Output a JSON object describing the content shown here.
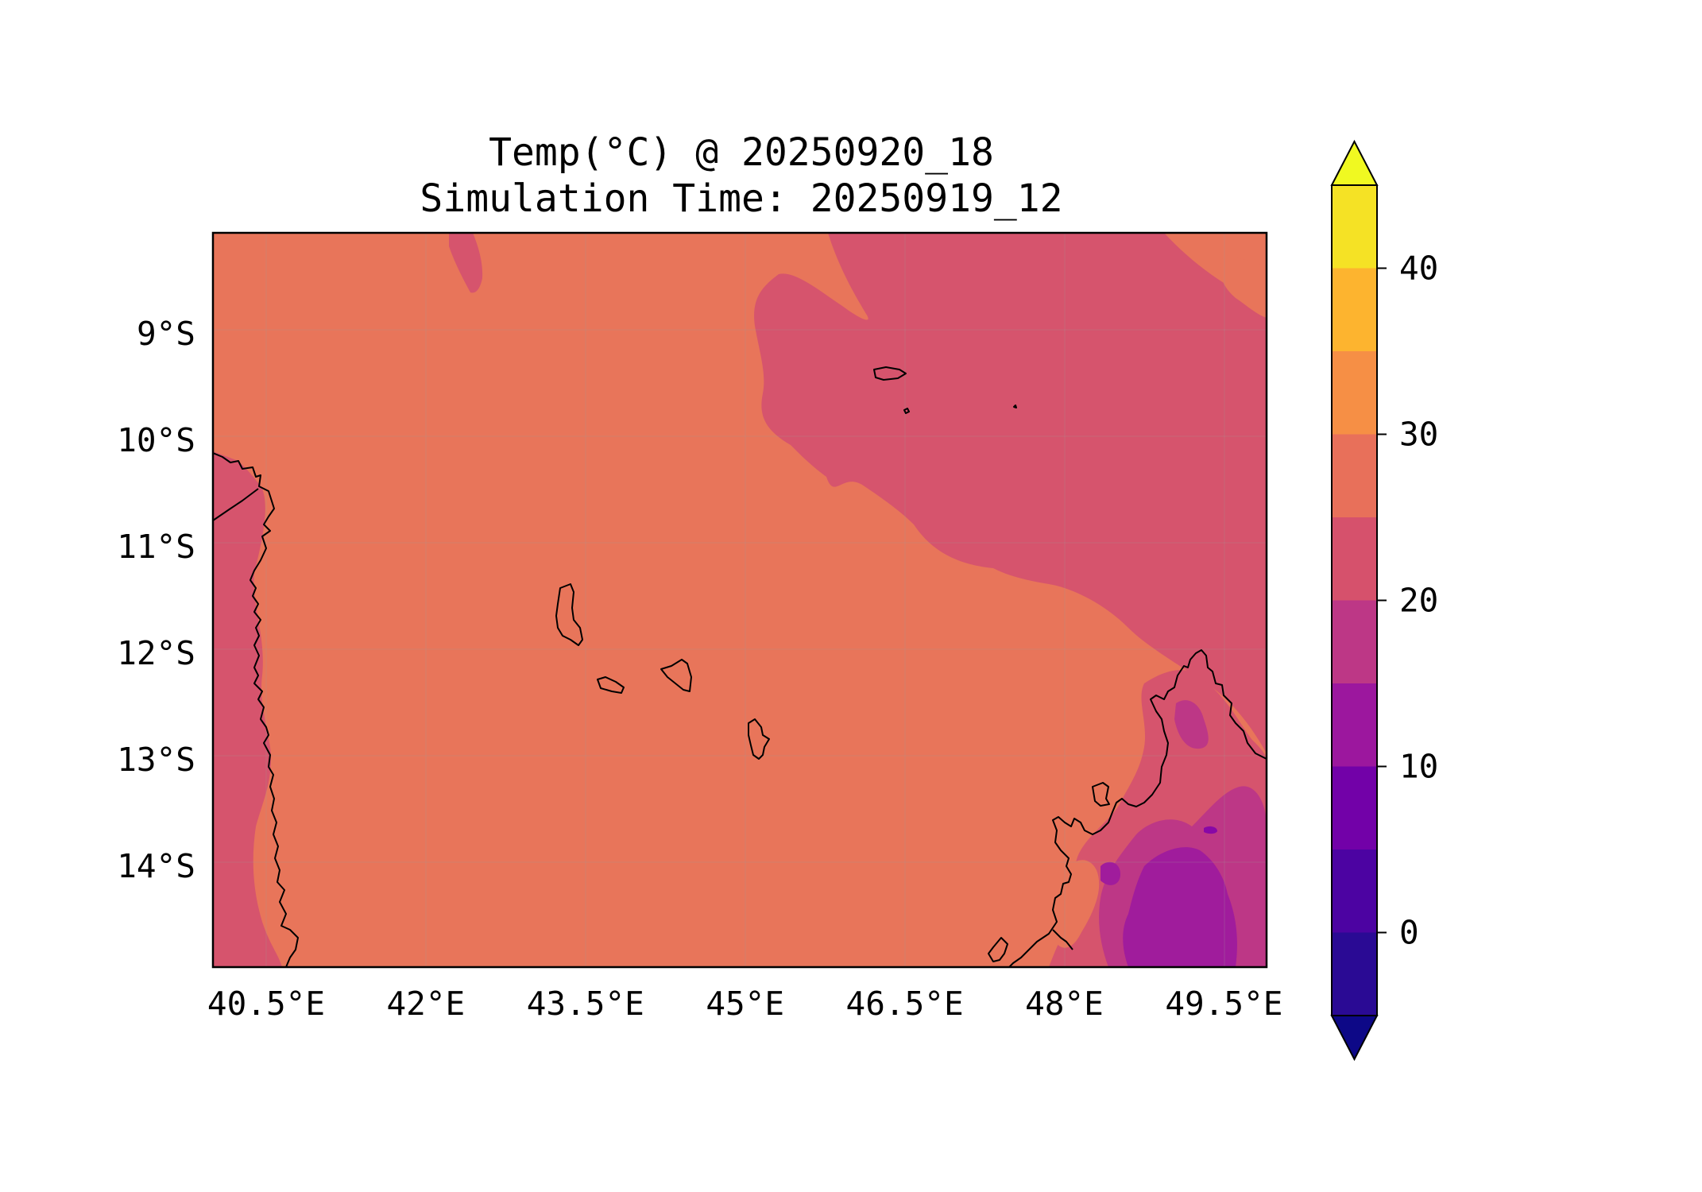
{
  "title": {
    "line1": "Temp(°C) @ 20250920_18",
    "line2": "Simulation Time: 20250919_12"
  },
  "map": {
    "variable": "Temp(°C)",
    "lon_range": [
      40.0,
      49.9
    ],
    "lat_range": [
      -14.95,
      -8.05
    ],
    "lon_ticks": [
      {
        "value": 40.5,
        "label": "40.5°E"
      },
      {
        "value": 42.0,
        "label": "42°E"
      },
      {
        "value": 43.5,
        "label": "43.5°E"
      },
      {
        "value": 45.0,
        "label": "45°E"
      },
      {
        "value": 46.5,
        "label": "46.5°E"
      },
      {
        "value": 48.0,
        "label": "48°E"
      },
      {
        "value": 49.5,
        "label": "49.5°E"
      }
    ],
    "lat_ticks": [
      {
        "value": -9,
        "label": "9°S"
      },
      {
        "value": -10,
        "label": "10°S"
      },
      {
        "value": -11,
        "label": "11°S"
      },
      {
        "value": -12,
        "label": "12°S"
      },
      {
        "value": -13,
        "label": "13°S"
      },
      {
        "value": -14,
        "label": "14°S"
      }
    ],
    "grid": true
  },
  "colorbar": {
    "levels": [
      -5,
      0,
      5,
      10,
      15,
      20,
      25,
      30,
      35,
      40,
      45
    ],
    "colors": [
      "#2a0a94",
      "#4c03a2",
      "#7201a8",
      "#9c179e",
      "#bd3786",
      "#d6516c",
      "#e8705a",
      "#f68f45",
      "#fdb42f",
      "#f5e225"
    ],
    "extend_under_color": "#0d0887",
    "extend_over_color": "#f0f921",
    "tick_values": [
      0,
      10,
      20,
      30,
      40
    ],
    "tick_labels": [
      "0",
      "10",
      "20",
      "30",
      "40"
    ]
  },
  "colors": {
    "temp_25_30": "#e8755a",
    "temp_20_25": "#d6546d",
    "temp_15_20": "#bd3786",
    "temp_10_15": "#a01c9c",
    "temp_5_10": "#8808a6",
    "coastline": "#000000"
  }
}
